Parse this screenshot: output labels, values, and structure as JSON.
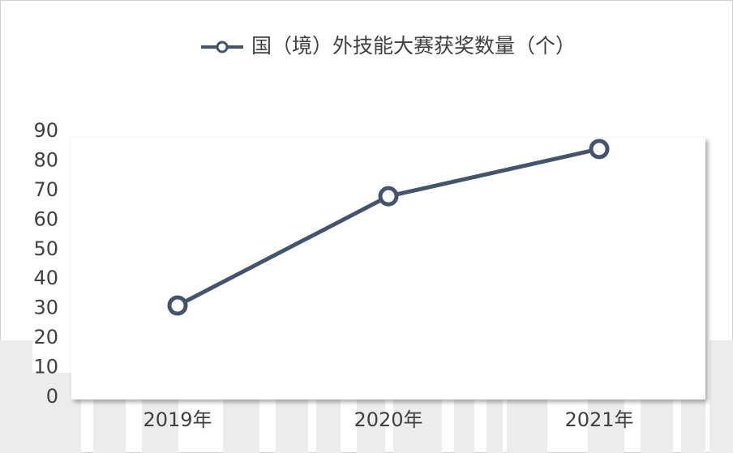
{
  "chart_data": {
    "type": "line",
    "categories": [
      "2019年",
      "2020年",
      "2021年"
    ],
    "series": [
      {
        "name": "国（境）外技能大赛获奖数量（个）",
        "color": "#44546a",
        "values": [
          31,
          68,
          84
        ]
      }
    ],
    "ylim": [
      0,
      90
    ],
    "yticks": [
      0,
      10,
      20,
      30,
      40,
      50,
      60,
      70,
      80,
      90
    ],
    "grid": false,
    "legend": "top"
  }
}
